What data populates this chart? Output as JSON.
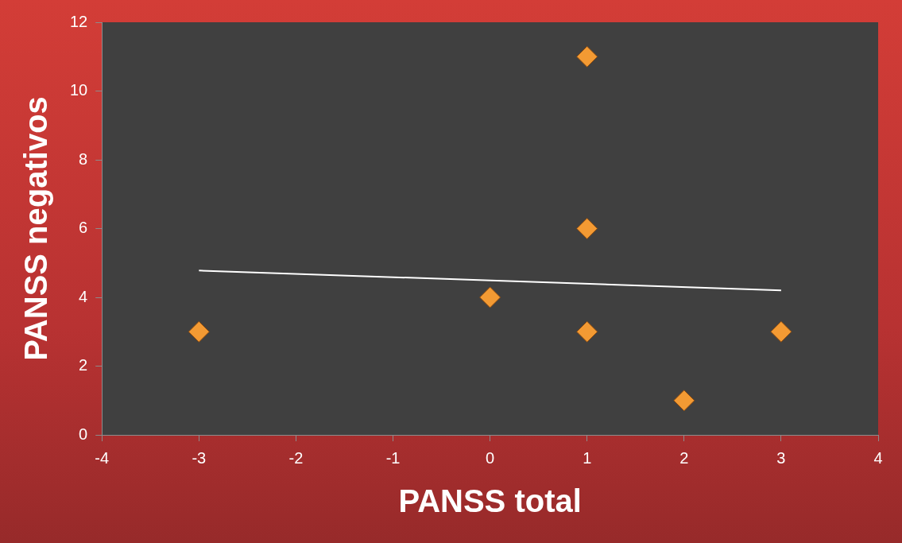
{
  "chart_data": {
    "type": "scatter",
    "xlabel": "PANSS total",
    "ylabel": "PANSS negativos",
    "series": [
      {
        "type": "scatter",
        "color": "#f39a33",
        "marker": "diamond",
        "x": [
          -3,
          0,
          1,
          1,
          1,
          2,
          3
        ],
        "values": [
          3,
          4,
          11,
          6,
          3,
          1,
          3
        ]
      },
      {
        "type": "line",
        "color": "#ffffff",
        "marker": "none",
        "x": [
          -3,
          3
        ],
        "values": [
          4.78,
          4.2
        ]
      }
    ],
    "xlim": [
      -4,
      4
    ],
    "xticks": [
      -4,
      -3,
      -2,
      -1,
      0,
      1,
      2,
      3,
      4
    ],
    "ylim": [
      0,
      12
    ],
    "yticks": [
      0,
      2,
      4,
      6,
      8,
      10,
      12
    ],
    "grid": false,
    "legend": false
  }
}
